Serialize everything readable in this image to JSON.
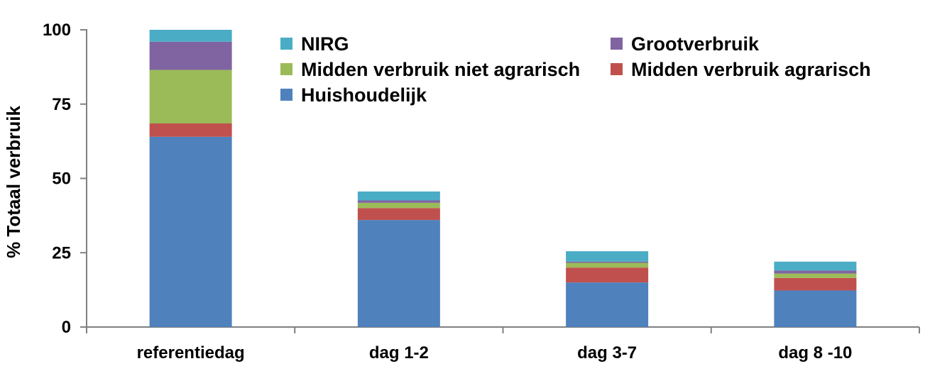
{
  "chart_data": {
    "type": "bar",
    "stacked": true,
    "categories": [
      "referentiedag",
      "dag 1-2",
      "dag 3-7",
      "dag 8 -10"
    ],
    "ylabel": "% Totaal verbruik",
    "xlabel": "",
    "ylim": [
      0,
      100
    ],
    "yticks": [
      "0",
      "25",
      "50",
      "75",
      "100"
    ],
    "grid": false,
    "legend_position": "top-right",
    "series": [
      {
        "name": "Huishoudelijk",
        "color": "#4F81BD",
        "values": [
          64,
          36,
          15,
          12.3
        ]
      },
      {
        "name": "Midden verbruik agrarisch",
        "color": "#C0504D",
        "values": [
          4.5,
          4,
          5,
          4.2
        ]
      },
      {
        "name": "Midden verbruik niet agrarisch",
        "color": "#9BBB59",
        "values": [
          18,
          1.8,
          1.6,
          1.5
        ]
      },
      {
        "name": "Grootverbruik",
        "color": "#8064A2",
        "values": [
          9.5,
          0.8,
          0.4,
          1
        ]
      },
      {
        "name": "NIRG",
        "color": "#4BACC6",
        "values": [
          4,
          3,
          3.5,
          3
        ]
      }
    ],
    "legend_order": [
      "NIRG",
      "Grootverbruik",
      "Midden verbruik niet agrarisch",
      "Midden verbruik agrarisch",
      "Huishoudelijk"
    ]
  }
}
